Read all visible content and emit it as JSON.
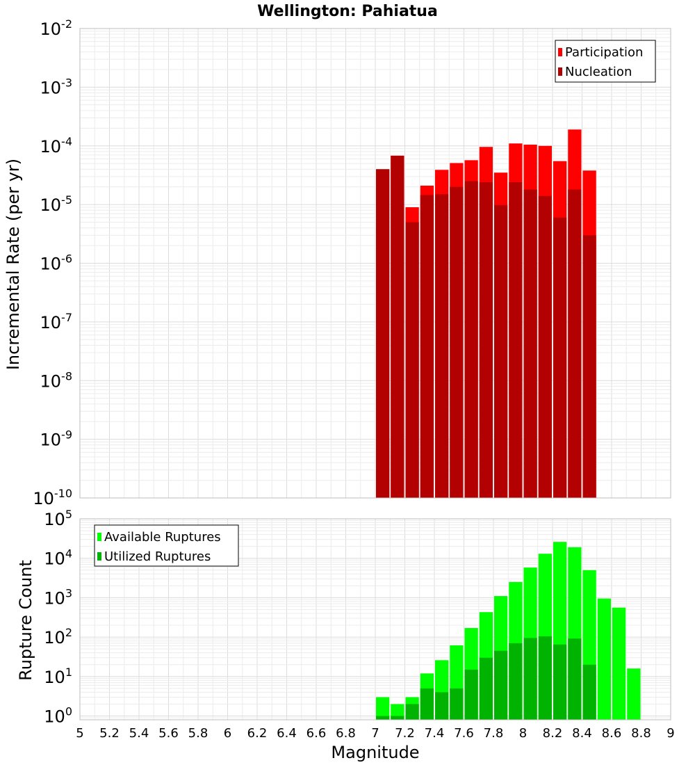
{
  "chart_data": [
    {
      "type": "bar",
      "title": "Wellington: Pahiatua",
      "ylabel": "Incremental Rate (per yr)",
      "xlabel": "",
      "y_scale": "log",
      "ylim": [
        1e-10,
        0.01
      ],
      "xlim": [
        5,
        9
      ],
      "y_tick_exponents": [
        "-10",
        "-9",
        "-8",
        "-7",
        "-6",
        "-5",
        "-4",
        "-3",
        "-2"
      ],
      "y_tick_base": "10",
      "grid": true,
      "legend_position": "top-right",
      "bar_width": 0.1,
      "x": [
        7.05,
        7.15,
        7.25,
        7.35,
        7.45,
        7.55,
        7.65,
        7.75,
        7.85,
        7.95,
        8.05,
        8.15,
        8.25,
        8.35,
        8.45
      ],
      "series": [
        {
          "name": "Participation",
          "color": "#ff0000",
          "values": [
            4e-05,
            6.8e-05,
            9e-06,
            2.1e-05,
            3.9e-05,
            5.1e-05,
            5.7e-05,
            9.6e-05,
            3.5e-05,
            0.00011,
            0.000105,
            0.0001,
            5.5e-05,
            0.00019,
            3.8e-05
          ]
        },
        {
          "name": "Nucleation",
          "color": "#b30000",
          "values": [
            4e-05,
            6.8e-05,
            5e-06,
            1.45e-05,
            1.5e-05,
            2e-05,
            2.5e-05,
            2.4e-05,
            9.8e-06,
            2.4e-05,
            1.8e-05,
            1.4e-05,
            6e-06,
            1.8e-05,
            3e-06
          ]
        }
      ]
    },
    {
      "type": "bar",
      "title": "",
      "ylabel": "Rupture Count",
      "xlabel": "Magnitude",
      "y_scale": "log",
      "ylim": [
        0.8,
        100000
      ],
      "xlim": [
        5,
        9
      ],
      "x_ticks": [
        "5",
        "5.2",
        "5.4",
        "5.6",
        "5.8",
        "6",
        "6.2",
        "6.4",
        "6.6",
        "6.8",
        "7",
        "7.2",
        "7.4",
        "7.6",
        "7.8",
        "8",
        "8.2",
        "8.4",
        "8.6",
        "8.8",
        "9"
      ],
      "y_tick_exponents": [
        "0",
        "1",
        "2",
        "3",
        "4",
        "5"
      ],
      "y_tick_base": "10",
      "grid": true,
      "legend_position": "top-left",
      "bar_width": 0.1,
      "x": [
        7.05,
        7.15,
        7.25,
        7.35,
        7.45,
        7.55,
        7.65,
        7.75,
        7.85,
        7.95,
        8.05,
        8.15,
        8.25,
        8.35,
        8.45,
        8.55,
        8.65,
        8.75
      ],
      "series": [
        {
          "name": "Available Ruptures",
          "color": "#00ff00",
          "values": [
            3,
            2,
            3,
            12,
            26,
            62,
            170,
            430,
            1100,
            2500,
            5800,
            13000,
            26000,
            19000,
            5000,
            950,
            560,
            16
          ]
        },
        {
          "name": "Utilized Ruptures",
          "color": "#00b300",
          "values": [
            1,
            1,
            2,
            5,
            4,
            5,
            15,
            30,
            45,
            70,
            95,
            105,
            65,
            92,
            20,
            0,
            0,
            0
          ]
        }
      ]
    }
  ]
}
